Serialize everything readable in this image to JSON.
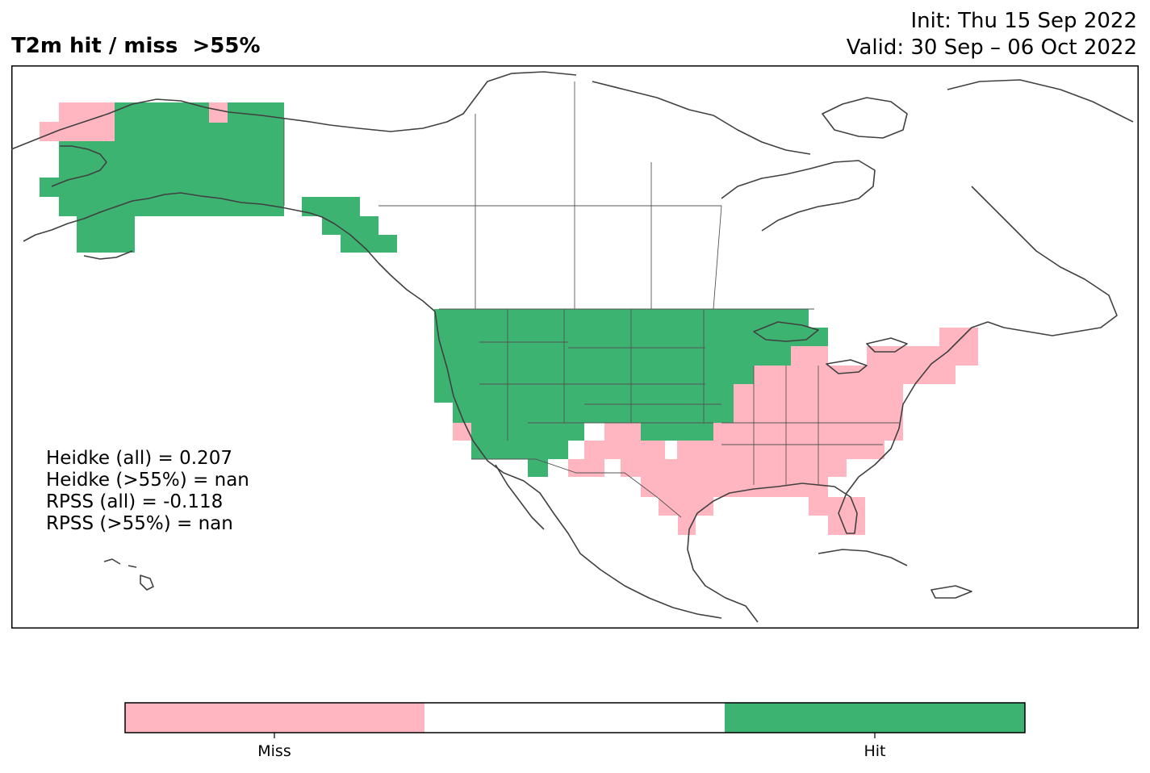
{
  "header": {
    "title": "T2m hit / miss  >55%",
    "init": "Init: Thu 15 Sep 2022",
    "valid": "Valid: 30 Sep – 06 Oct 2022"
  },
  "stats": {
    "heidke_all": "Heidke (all) = 0.207",
    "heidke_55": "Heidke (>55%) = nan",
    "rpss_all": "RPSS (all) = -0.118",
    "rpss_55": "RPSS (>55%) = nan"
  },
  "legend": {
    "miss_label": "Miss",
    "hit_label": "Hit"
  },
  "colors": {
    "miss": "#ffb6c1",
    "hit": "#3cb371",
    "coast": "#404040",
    "border": "#555555"
  }
}
